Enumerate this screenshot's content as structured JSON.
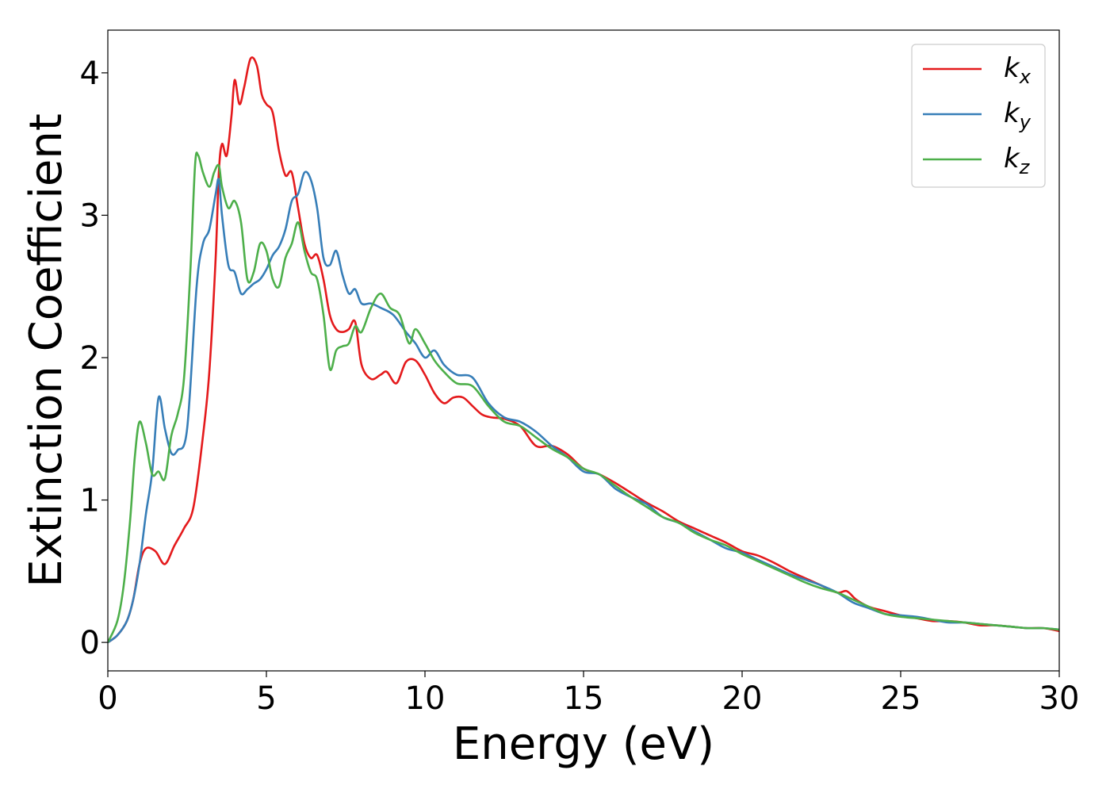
{
  "chart_data": {
    "type": "line",
    "xlabel": "Energy (eV)",
    "ylabel": "Extinction Coefficient",
    "xlim": [
      0,
      30
    ],
    "ylim": [
      -0.2,
      4.3
    ],
    "xticks": [
      0,
      5,
      10,
      15,
      20,
      25,
      30
    ],
    "yticks": [
      0,
      1,
      2,
      3,
      4
    ],
    "xtick_labels": [
      "0",
      "5",
      "10",
      "15",
      "20",
      "25",
      "30"
    ],
    "ytick_labels": [
      "0",
      "1",
      "2",
      "3",
      "4"
    ],
    "grid": false,
    "legend_position": "top-right",
    "series": [
      {
        "name": "k",
        "subscript": "x",
        "color": "#e41a1c",
        "x": [
          0,
          0.3,
          0.6,
          0.8,
          1.0,
          1.2,
          1.5,
          1.8,
          2.1,
          2.4,
          2.7,
          3.0,
          3.2,
          3.4,
          3.5,
          3.6,
          3.75,
          3.9,
          4.0,
          4.15,
          4.3,
          4.5,
          4.7,
          4.85,
          5.0,
          5.2,
          5.4,
          5.6,
          5.8,
          6.0,
          6.2,
          6.4,
          6.6,
          6.8,
          7.0,
          7.2,
          7.4,
          7.6,
          7.8,
          8.0,
          8.3,
          8.6,
          8.8,
          9.1,
          9.4,
          9.7,
          10.0,
          10.3,
          10.6,
          10.9,
          11.2,
          11.5,
          11.8,
          12.1,
          12.5,
          13.0,
          13.5,
          14.0,
          14.5,
          15.0,
          15.5,
          16.0,
          16.5,
          17.0,
          17.5,
          18.0,
          18.5,
          19.0,
          19.5,
          20.0,
          20.5,
          21.0,
          21.5,
          22.0,
          22.5,
          23.0,
          23.3,
          23.6,
          24.0,
          24.5,
          25.0,
          25.5,
          26.0,
          26.5,
          27.0,
          27.5,
          28.0,
          28.5,
          29.0,
          29.5,
          30.0
        ],
        "values": [
          0,
          0.05,
          0.15,
          0.3,
          0.55,
          0.66,
          0.64,
          0.55,
          0.68,
          0.8,
          0.95,
          1.45,
          1.9,
          2.7,
          3.3,
          3.5,
          3.42,
          3.7,
          3.95,
          3.78,
          3.9,
          4.1,
          4.05,
          3.85,
          3.78,
          3.72,
          3.45,
          3.28,
          3.3,
          3.05,
          2.8,
          2.7,
          2.72,
          2.55,
          2.3,
          2.2,
          2.18,
          2.2,
          2.25,
          1.95,
          1.85,
          1.88,
          1.9,
          1.82,
          1.97,
          1.98,
          1.88,
          1.75,
          1.68,
          1.72,
          1.72,
          1.66,
          1.6,
          1.58,
          1.57,
          1.52,
          1.38,
          1.38,
          1.32,
          1.22,
          1.18,
          1.12,
          1.05,
          0.98,
          0.92,
          0.85,
          0.8,
          0.75,
          0.7,
          0.64,
          0.61,
          0.56,
          0.5,
          0.45,
          0.4,
          0.35,
          0.36,
          0.3,
          0.25,
          0.22,
          0.19,
          0.17,
          0.15,
          0.15,
          0.14,
          0.12,
          0.12,
          0.11,
          0.1,
          0.1,
          0.08
        ]
      },
      {
        "name": "k",
        "subscript": "y",
        "color": "#377eb8",
        "x": [
          0,
          0.3,
          0.6,
          0.8,
          1.0,
          1.2,
          1.4,
          1.6,
          1.8,
          2.0,
          2.2,
          2.5,
          2.8,
          3.0,
          3.2,
          3.4,
          3.5,
          3.6,
          3.8,
          4.0,
          4.2,
          4.4,
          4.6,
          4.8,
          5.0,
          5.2,
          5.4,
          5.6,
          5.8,
          6.0,
          6.2,
          6.4,
          6.6,
          6.8,
          7.0,
          7.2,
          7.4,
          7.6,
          7.8,
          8.0,
          8.3,
          8.6,
          9.0,
          9.4,
          9.7,
          10.0,
          10.3,
          10.6,
          11.0,
          11.5,
          12.0,
          12.5,
          13.0,
          13.5,
          14.0,
          14.5,
          15.0,
          15.5,
          16.0,
          16.5,
          17.0,
          17.5,
          18.0,
          18.5,
          19.0,
          19.5,
          20.0,
          20.5,
          21.0,
          21.5,
          22.0,
          22.5,
          23.0,
          23.5,
          24.0,
          24.5,
          25.0,
          25.5,
          26.0,
          26.5,
          27.0,
          27.5,
          28.0,
          28.5,
          29.0,
          29.5,
          30.0
        ],
        "values": [
          0,
          0.05,
          0.15,
          0.3,
          0.55,
          0.9,
          1.2,
          1.72,
          1.5,
          1.33,
          1.35,
          1.5,
          2.5,
          2.8,
          2.9,
          3.15,
          3.25,
          3.0,
          2.65,
          2.6,
          2.45,
          2.48,
          2.52,
          2.55,
          2.62,
          2.72,
          2.78,
          2.9,
          3.1,
          3.15,
          3.3,
          3.25,
          3.05,
          2.7,
          2.65,
          2.75,
          2.58,
          2.45,
          2.48,
          2.38,
          2.38,
          2.35,
          2.3,
          2.18,
          2.1,
          2.0,
          2.05,
          1.95,
          1.88,
          1.86,
          1.68,
          1.58,
          1.55,
          1.48,
          1.38,
          1.3,
          1.2,
          1.18,
          1.08,
          1.02,
          0.97,
          0.88,
          0.84,
          0.78,
          0.72,
          0.66,
          0.63,
          0.58,
          0.53,
          0.48,
          0.44,
          0.4,
          0.35,
          0.28,
          0.24,
          0.2,
          0.19,
          0.18,
          0.16,
          0.14,
          0.14,
          0.13,
          0.12,
          0.11,
          0.1,
          0.1,
          0.09
        ]
      },
      {
        "name": "k",
        "subscript": "z",
        "color": "#4daf4a",
        "x": [
          0,
          0.3,
          0.5,
          0.7,
          0.85,
          1.0,
          1.2,
          1.4,
          1.6,
          1.8,
          2.0,
          2.2,
          2.4,
          2.6,
          2.75,
          2.85,
          3.0,
          3.2,
          3.35,
          3.5,
          3.6,
          3.8,
          4.0,
          4.2,
          4.4,
          4.6,
          4.8,
          5.0,
          5.2,
          5.4,
          5.6,
          5.8,
          6.0,
          6.2,
          6.4,
          6.6,
          6.8,
          7.0,
          7.2,
          7.4,
          7.6,
          7.8,
          8.0,
          8.3,
          8.6,
          8.9,
          9.2,
          9.5,
          9.7,
          10.0,
          10.3,
          10.6,
          11.0,
          11.5,
          12.0,
          12.5,
          13.0,
          13.5,
          14.0,
          14.5,
          15.0,
          15.5,
          16.0,
          16.5,
          17.0,
          17.5,
          18.0,
          18.5,
          19.0,
          19.5,
          20.0,
          20.5,
          21.0,
          21.5,
          22.0,
          22.5,
          23.0,
          23.5,
          24.0,
          24.5,
          25.0,
          25.5,
          26.0,
          26.5,
          27.0,
          27.5,
          28.0,
          28.5,
          29.0,
          29.5,
          30.0
        ],
        "values": [
          0,
          0.15,
          0.4,
          0.85,
          1.3,
          1.55,
          1.4,
          1.18,
          1.2,
          1.15,
          1.45,
          1.6,
          1.85,
          2.6,
          3.35,
          3.42,
          3.3,
          3.2,
          3.3,
          3.35,
          3.2,
          3.05,
          3.1,
          2.95,
          2.55,
          2.6,
          2.8,
          2.75,
          2.55,
          2.5,
          2.7,
          2.8,
          2.95,
          2.75,
          2.6,
          2.55,
          2.3,
          1.92,
          2.05,
          2.08,
          2.1,
          2.22,
          2.18,
          2.35,
          2.45,
          2.35,
          2.3,
          2.1,
          2.2,
          2.1,
          1.98,
          1.9,
          1.82,
          1.8,
          1.66,
          1.55,
          1.52,
          1.44,
          1.36,
          1.3,
          1.22,
          1.18,
          1.1,
          1.02,
          0.95,
          0.88,
          0.84,
          0.77,
          0.72,
          0.68,
          0.62,
          0.57,
          0.52,
          0.47,
          0.42,
          0.38,
          0.35,
          0.3,
          0.25,
          0.2,
          0.18,
          0.17,
          0.16,
          0.15,
          0.14,
          0.13,
          0.12,
          0.11,
          0.1,
          0.1,
          0.09
        ]
      }
    ]
  }
}
